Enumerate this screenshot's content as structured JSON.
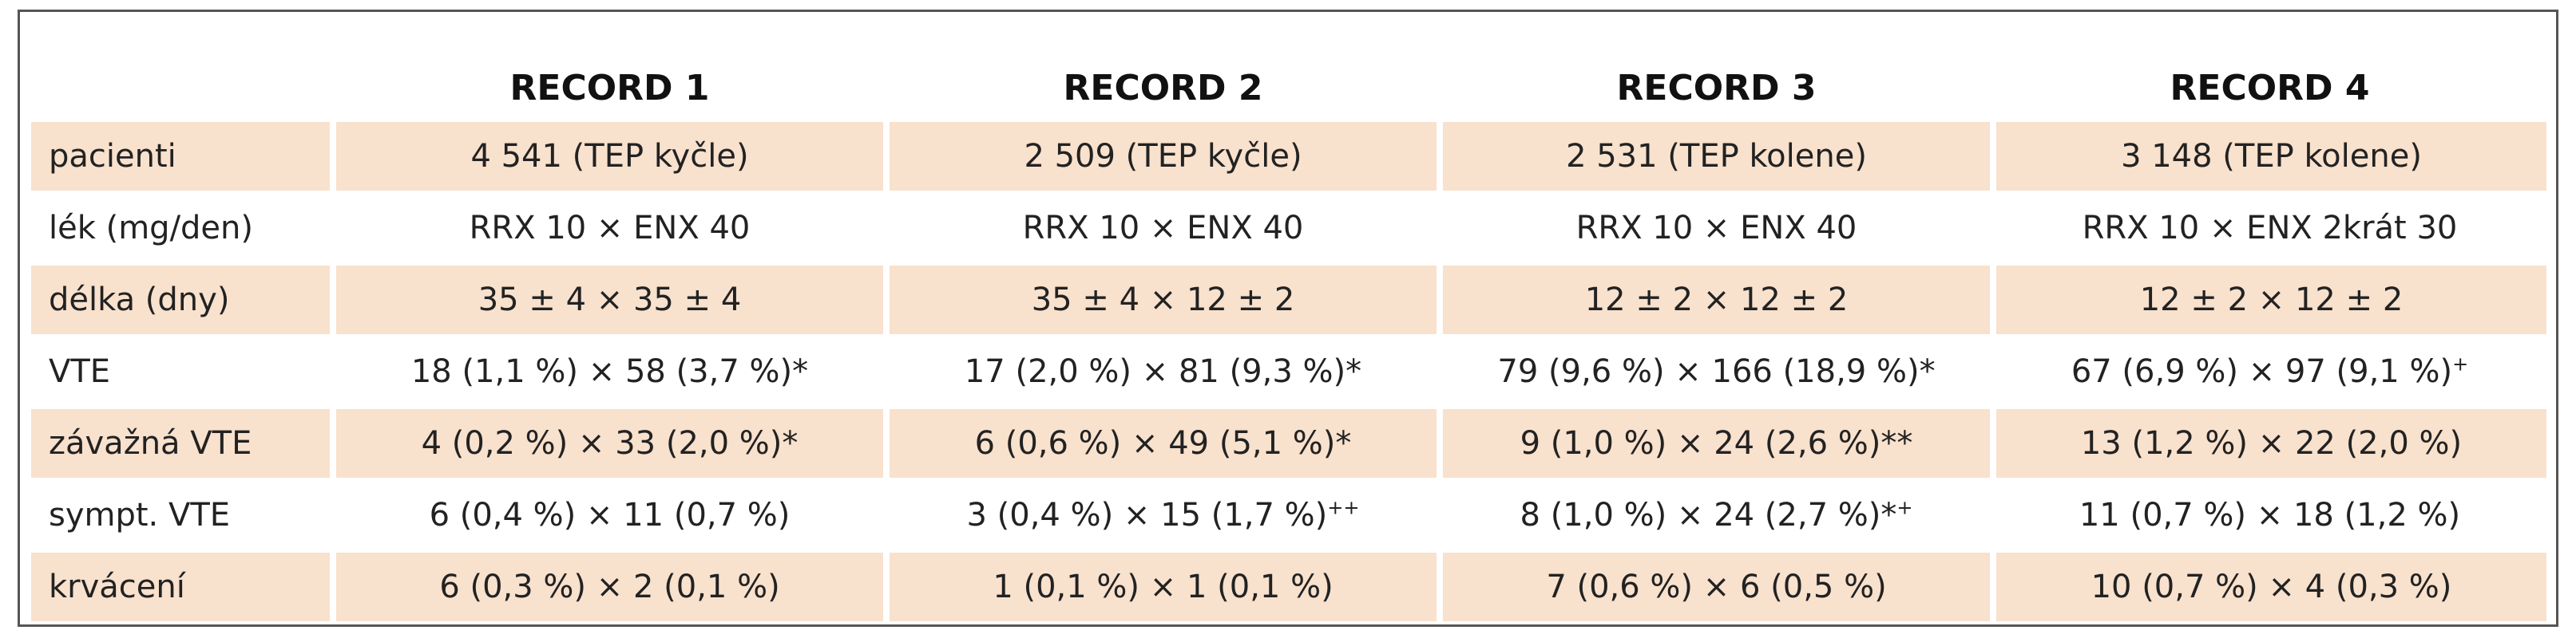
{
  "header": {
    "corner": "",
    "columns": [
      "RECORD 1",
      "RECORD 2",
      "RECORD 3",
      "RECORD 4"
    ]
  },
  "rows": [
    {
      "label": "pacienti",
      "shaded": true,
      "cells": [
        "4 541 (TEP kyčle)",
        "2 509 (TEP kyčle)",
        "2 531 (TEP kolene)",
        "3 148 (TEP kolene)"
      ],
      "marks": [
        "",
        "",
        "",
        ""
      ]
    },
    {
      "label": "lék (mg/den)",
      "shaded": false,
      "cells": [
        "RRX 10 × ENX 40",
        "RRX 10 × ENX 40",
        "RRX 10 × ENX 40",
        "RRX 10 × ENX 2krát 30"
      ],
      "marks": [
        "",
        "",
        "",
        ""
      ]
    },
    {
      "label": "délka (dny)",
      "shaded": true,
      "cells": [
        "35 ± 4 × 35 ± 4",
        "35 ± 4 × 12 ± 2",
        "12 ± 2 × 12 ± 2",
        "12 ± 2 × 12 ± 2"
      ],
      "marks": [
        "",
        "",
        "",
        ""
      ]
    },
    {
      "label": "VTE",
      "shaded": false,
      "cells": [
        "18 (1,1 %) × 58 (3,7 %)*",
        "17 (2,0 %) × 81 (9,3 %)*",
        "79 (9,6 %) × 166 (18,9 %)*",
        "67 (6,9 %) × 97 (9,1 %)"
      ],
      "marks": [
        "",
        "",
        "",
        "+"
      ]
    },
    {
      "label": "závažná VTE",
      "shaded": true,
      "cells": [
        "4 (0,2 %) × 33 (2,0 %)*",
        "6 (0,6 %) × 49 (5,1 %)*",
        "9 (1,0 %) × 24 (2,6 %)**",
        "13 (1,2 %) × 22 (2,0 %)"
      ],
      "marks": [
        "",
        "",
        "",
        ""
      ]
    },
    {
      "label": "sympt. VTE",
      "shaded": false,
      "cells": [
        "6 (0,4 %) × 11 (0,7 %)",
        "3 (0,4 %) × 15 (1,7 %)",
        "8 (1,0 %) × 24 (2,7 %)*",
        "11 (0,7 %) × 18 (1,2 %)"
      ],
      "marks": [
        "",
        "++",
        "+",
        ""
      ]
    },
    {
      "label": "krvácení",
      "shaded": true,
      "cells": [
        "6 (0,3 %) × 2 (0,1 %)",
        "1 (0,1 %) × 1 (0,1 %)",
        "7 (0,6 %) × 6 (0,5 %)",
        "10 (0,7 %) × 4 (0,3 %)"
      ],
      "marks": [
        "",
        "",
        "",
        ""
      ]
    }
  ]
}
